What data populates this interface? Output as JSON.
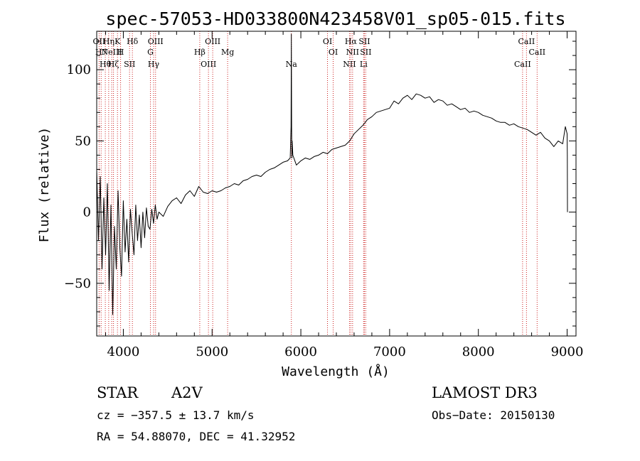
{
  "chart_data": {
    "type": "line",
    "title": "spec-57053-HD033800N423458V01_sp05-015.fits",
    "xlabel": "Wavelength (Å)",
    "ylabel": "Flux (relative)",
    "xlim": [
      3700,
      9100
    ],
    "ylim": [
      -87,
      127
    ],
    "xticks": [
      {
        "value": 4000,
        "label": "4000"
      },
      {
        "value": 5000,
        "label": "5000"
      },
      {
        "value": 6000,
        "label": "6000"
      },
      {
        "value": 7000,
        "label": "7000"
      },
      {
        "value": 8000,
        "label": "8000"
      },
      {
        "value": 9000,
        "label": "9000"
      }
    ],
    "yticks": [
      {
        "value": -50,
        "label": "−50"
      },
      {
        "value": 0,
        "label": "0"
      },
      {
        "value": 50,
        "label": "50"
      },
      {
        "value": 100,
        "label": "100"
      }
    ],
    "series": [
      {
        "name": "flux",
        "x": [
          3700,
          3720,
          3740,
          3760,
          3780,
          3800,
          3820,
          3840,
          3860,
          3880,
          3900,
          3920,
          3940,
          3960,
          3980,
          4000,
          4020,
          4040,
          4060,
          4080,
          4100,
          4120,
          4140,
          4160,
          4180,
          4200,
          4220,
          4240,
          4260,
          4280,
          4300,
          4320,
          4340,
          4360,
          4380,
          4400,
          4450,
          4500,
          4550,
          4600,
          4650,
          4700,
          4750,
          4800,
          4850,
          4900,
          4950,
          5000,
          5050,
          5100,
          5150,
          5200,
          5250,
          5300,
          5350,
          5400,
          5450,
          5500,
          5550,
          5600,
          5650,
          5700,
          5750,
          5800,
          5850,
          5880,
          5890,
          5893,
          5896,
          5899,
          5902,
          5910,
          5950,
          6000,
          6050,
          6100,
          6150,
          6200,
          6250,
          6300,
          6350,
          6400,
          6450,
          6500,
          6550,
          6600,
          6650,
          6700,
          6750,
          6800,
          6850,
          6900,
          6950,
          7000,
          7050,
          7100,
          7150,
          7200,
          7250,
          7300,
          7350,
          7400,
          7450,
          7500,
          7550,
          7600,
          7650,
          7700,
          7750,
          7800,
          7850,
          7900,
          7950,
          8000,
          8050,
          8100,
          8150,
          8200,
          8250,
          8300,
          8350,
          8400,
          8450,
          8500,
          8550,
          8600,
          8650,
          8700,
          8750,
          8800,
          8850,
          8900,
          8950,
          8980,
          9000,
          9002,
          9004
        ],
        "y": [
          30,
          -20,
          25,
          -40,
          10,
          -30,
          20,
          -55,
          5,
          -72,
          -10,
          -40,
          15,
          -25,
          -45,
          8,
          -28,
          -5,
          -35,
          2,
          -15,
          -30,
          5,
          -20,
          -2,
          -25,
          0,
          -18,
          3,
          -10,
          -12,
          2,
          -8,
          5,
          -5,
          0,
          -3,
          4,
          8,
          10,
          6,
          12,
          15,
          11,
          18,
          14,
          13,
          15,
          14,
          15,
          17,
          18,
          20,
          19,
          22,
          23,
          25,
          26,
          25,
          28,
          30,
          31,
          33,
          35,
          36,
          38,
          60,
          125,
          60,
          38,
          50,
          40,
          33,
          36,
          38,
          37,
          39,
          40,
          42,
          41,
          44,
          45,
          46,
          47,
          50,
          55,
          58,
          61,
          65,
          67,
          70,
          71,
          72,
          73,
          78,
          76,
          80,
          82,
          79,
          83,
          82,
          80,
          81,
          77,
          79,
          78,
          75,
          76,
          74,
          72,
          73,
          70,
          71,
          70,
          68,
          67,
          66,
          64,
          63,
          63,
          61,
          62,
          60,
          59,
          58,
          56,
          54,
          56,
          52,
          50,
          46,
          50,
          48,
          60,
          55,
          40,
          0
        ],
        "color": "#000000"
      }
    ],
    "line_marks": [
      {
        "wavelength": 3727,
        "color": "#cc2020",
        "labels": [
          "OII"
        ]
      },
      {
        "wavelength": 3750,
        "color": "#cc2020",
        "labels": [
          "H7"
        ]
      },
      {
        "wavelength": 3797,
        "color": "#cc2020",
        "labels": [
          "Hθ"
        ]
      },
      {
        "wavelength": 3835,
        "color": "#cc2020",
        "labels": [
          "Hη"
        ]
      },
      {
        "wavelength": 3869,
        "color": "#cc2020",
        "labels": [
          "NeIII"
        ]
      },
      {
        "wavelength": 3889,
        "color": "#cc2020",
        "labels": [
          "Hζ"
        ]
      },
      {
        "wavelength": 3934,
        "color": "#cc2020",
        "labels": [
          "K"
        ]
      },
      {
        "wavelength": 3969,
        "color": "#cc2020",
        "labels": [
          "H"
        ]
      },
      {
        "wavelength": 4070,
        "color": "#cc2020",
        "labels": [
          "SII"
        ]
      },
      {
        "wavelength": 4102,
        "color": "#cc2020",
        "labels": [
          "Hδ"
        ]
      },
      {
        "wavelength": 4305,
        "color": "#cc2020",
        "labels": [
          "G"
        ]
      },
      {
        "wavelength": 4341,
        "color": "#cc2020",
        "labels": [
          "Hγ"
        ]
      },
      {
        "wavelength": 4363,
        "color": "#cc2020",
        "labels": [
          "OIII"
        ]
      },
      {
        "wavelength": 4861,
        "color": "#cc2020",
        "labels": [
          "Hβ"
        ]
      },
      {
        "wavelength": 4959,
        "color": "#cc2020",
        "labels": [
          "OIII"
        ]
      },
      {
        "wavelength": 5007,
        "color": "#cc2020",
        "labels": [
          "OIII"
        ]
      },
      {
        "wavelength": 5175,
        "color": "#cc2020",
        "labels": [
          "Mg"
        ]
      },
      {
        "wavelength": 5893,
        "color": "#cc2020",
        "labels": [
          "Na"
        ]
      },
      {
        "wavelength": 6300,
        "color": "#cc2020",
        "labels": [
          "OI"
        ]
      },
      {
        "wavelength": 6364,
        "color": "#cc2020",
        "labels": [
          "OI"
        ]
      },
      {
        "wavelength": 6548,
        "color": "#cc2020",
        "labels": [
          "NII"
        ]
      },
      {
        "wavelength": 6563,
        "color": "#cc2020",
        "labels": [
          "Hα"
        ]
      },
      {
        "wavelength": 6583,
        "color": "#cc2020",
        "labels": [
          "NII"
        ]
      },
      {
        "wavelength": 6707,
        "color": "#cc2020",
        "labels": [
          "Li"
        ]
      },
      {
        "wavelength": 6716,
        "color": "#cc2020",
        "labels": [
          "SII"
        ]
      },
      {
        "wavelength": 6731,
        "color": "#cc2020",
        "labels": [
          "SII"
        ]
      },
      {
        "wavelength": 8498,
        "color": "#cc2020",
        "labels": [
          "CaII"
        ]
      },
      {
        "wavelength": 8542,
        "color": "#cc2020",
        "labels": [
          "CaII"
        ]
      },
      {
        "wavelength": 8662,
        "color": "#cc2020",
        "labels": [
          "CaII"
        ]
      }
    ],
    "annotations": {
      "object_class": "STAR",
      "subclass": "A2V",
      "survey": "LAMOST DR3",
      "redshift": "cz = −357.5 ± 13.7 km/s",
      "obs_date": "Obs−Date: 20150130",
      "coords": "RA =  54.88070, DEC =  41.32952"
    }
  }
}
